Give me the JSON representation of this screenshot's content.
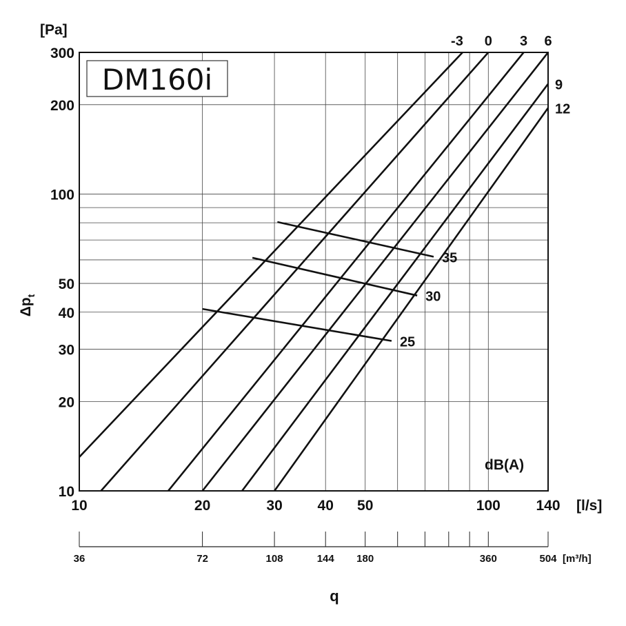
{
  "chart_data": {
    "type": "line",
    "title": "DM160i",
    "x_scale": "log",
    "y_scale": "log",
    "xlim": [
      10,
      140
    ],
    "ylim": [
      10,
      300
    ],
    "xlabel": "q",
    "x_unit": "[l/s]",
    "ylabel": "Δp",
    "ylabel_sub": "t",
    "y_unit": "[Pa]",
    "annotation": "dB(A)",
    "x_ticks": [
      {
        "value": 10,
        "label": "10"
      },
      {
        "value": 20,
        "label": "20"
      },
      {
        "value": 30,
        "label": "30"
      },
      {
        "value": 40,
        "label": "40"
      },
      {
        "value": 50,
        "label": "50"
      },
      {
        "value": 100,
        "label": "100"
      },
      {
        "value": 140,
        "label": "140"
      }
    ],
    "y_ticks": [
      {
        "value": 10,
        "label": "10"
      },
      {
        "value": 20,
        "label": "20"
      },
      {
        "value": 30,
        "label": "30"
      },
      {
        "value": 40,
        "label": "40"
      },
      {
        "value": 50,
        "label": "50"
      },
      {
        "value": 100,
        "label": "100"
      },
      {
        "value": 200,
        "label": "200"
      },
      {
        "value": 300,
        "label": "300"
      }
    ],
    "x_grid": [
      20,
      30,
      40,
      50,
      60,
      70,
      80,
      90,
      100
    ],
    "y_grid": [
      20,
      30,
      40,
      50,
      60,
      70,
      80,
      90,
      100,
      200
    ],
    "secondary_axis": {
      "unit": "[m³/h]",
      "labels": [
        {
          "l_s": 10,
          "label": "36"
        },
        {
          "l_s": 20,
          "label": "72"
        },
        {
          "l_s": 30,
          "label": "108"
        },
        {
          "l_s": 40,
          "label": "144"
        },
        {
          "l_s": 50,
          "label": "180"
        },
        {
          "l_s": 100,
          "label": "360"
        },
        {
          "l_s": 140,
          "label": "504"
        }
      ],
      "minor_ticks_l_s": [
        60,
        70,
        80,
        90
      ]
    },
    "series": [
      {
        "name": "-3",
        "points": [
          [
            10,
            13
          ],
          [
            86.5,
            300
          ]
        ]
      },
      {
        "name": "0",
        "points": [
          [
            11.3,
            10
          ],
          [
            100,
            300
          ]
        ]
      },
      {
        "name": "3",
        "points": [
          [
            16.5,
            10
          ],
          [
            122,
            300
          ]
        ]
      },
      {
        "name": "6",
        "points": [
          [
            20,
            10
          ],
          [
            140,
            300
          ]
        ]
      },
      {
        "name": "9",
        "points": [
          [
            25,
            10
          ],
          [
            140,
            235
          ]
        ]
      },
      {
        "name": "12",
        "points": [
          [
            30,
            10
          ],
          [
            140,
            195
          ]
        ]
      }
    ],
    "sound_levels": [
      {
        "name": "35",
        "points": [
          [
            30.5,
            80.5
          ],
          [
            73.5,
            61.5
          ]
        ]
      },
      {
        "name": "30",
        "points": [
          [
            26.5,
            61
          ],
          [
            67,
            45.5
          ]
        ]
      },
      {
        "name": "25",
        "points": [
          [
            20,
            41
          ],
          [
            58,
            32
          ]
        ]
      }
    ]
  }
}
